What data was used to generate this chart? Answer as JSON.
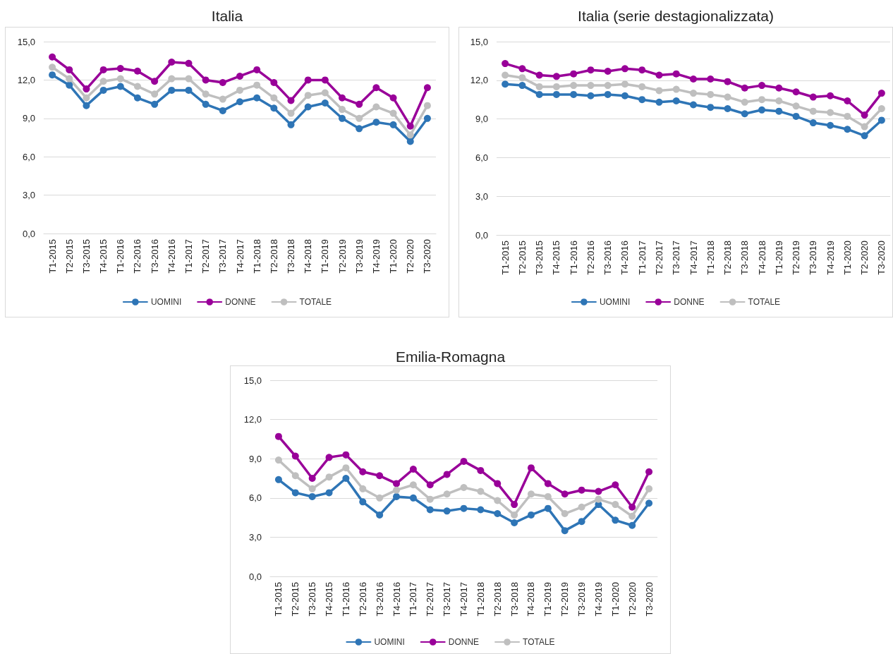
{
  "chart_data": [
    {
      "type": "line",
      "title": "Italia",
      "categories": [
        "T1-2015",
        "T2-2015",
        "T3-2015",
        "T4-2015",
        "T1-2016",
        "T2-2016",
        "T3-2016",
        "T4-2016",
        "T1-2017",
        "T2-2017",
        "T3-2017",
        "T4-2017",
        "T1-2018",
        "T2-2018",
        "T3-2018",
        "T4-2018",
        "T1-2019",
        "T2-2019",
        "T3-2019",
        "T4-2019",
        "T1-2020",
        "T2-2020",
        "T3-2020"
      ],
      "series": [
        {
          "name": "UOMINI",
          "color": "#2e75b6",
          "values": [
            12.4,
            11.6,
            10.0,
            11.2,
            11.5,
            10.6,
            10.1,
            11.2,
            11.2,
            10.1,
            9.6,
            10.3,
            10.6,
            9.8,
            8.5,
            9.9,
            10.2,
            9.0,
            8.2,
            8.7,
            8.5,
            7.2,
            9.0
          ]
        },
        {
          "name": "DONNE",
          "color": "#990099",
          "values": [
            13.8,
            12.8,
            11.3,
            12.8,
            12.9,
            12.7,
            11.9,
            13.4,
            13.3,
            12.0,
            11.8,
            12.3,
            12.8,
            11.8,
            10.4,
            12.0,
            12.0,
            10.6,
            10.1,
            11.4,
            10.6,
            8.4,
            11.4
          ]
        },
        {
          "name": "TOTALE",
          "color": "#bfbfbf",
          "values": [
            13.0,
            12.1,
            10.6,
            11.9,
            12.1,
            11.5,
            10.9,
            12.1,
            12.1,
            10.9,
            10.5,
            11.2,
            11.6,
            10.6,
            9.4,
            10.8,
            11.0,
            9.7,
            9.0,
            9.9,
            9.4,
            7.7,
            10.0
          ]
        }
      ],
      "ylim": [
        0,
        15
      ],
      "yticks": [
        {
          "value": 0,
          "label": "0,0"
        },
        {
          "value": 3,
          "label": "3,0"
        },
        {
          "value": 6,
          "label": "6,0"
        },
        {
          "value": 9,
          "label": "9,0"
        },
        {
          "value": 12,
          "label": "12,0"
        },
        {
          "value": 15,
          "label": "15,0"
        }
      ],
      "grid": "y",
      "legend": "bottom",
      "marker": "circle",
      "line_style": "solid"
    },
    {
      "type": "line",
      "title": "Italia (serie destagionalizzata)",
      "categories": [
        "T1-2015",
        "T2-2015",
        "T3-2015",
        "T4-2015",
        "T1-2016",
        "T2-2016",
        "T3-2016",
        "T4-2016",
        "T1-2017",
        "T2-2017",
        "T3-2017",
        "T4-2017",
        "T1-2018",
        "T2-2018",
        "T3-2018",
        "T4-2018",
        "T1-2019",
        "T2-2019",
        "T3-2019",
        "T4-2019",
        "T1-2020",
        "T2-2020",
        "T3-2020"
      ],
      "series": [
        {
          "name": "UOMINI",
          "color": "#2e75b6",
          "values": [
            11.7,
            11.6,
            10.9,
            10.9,
            10.9,
            10.8,
            10.9,
            10.8,
            10.5,
            10.3,
            10.4,
            10.1,
            9.9,
            9.8,
            9.4,
            9.7,
            9.6,
            9.2,
            8.7,
            8.5,
            8.2,
            7.7,
            8.9
          ]
        },
        {
          "name": "DONNE",
          "color": "#990099",
          "values": [
            13.3,
            12.9,
            12.4,
            12.3,
            12.5,
            12.8,
            12.7,
            12.9,
            12.8,
            12.4,
            12.5,
            12.1,
            12.1,
            11.9,
            11.4,
            11.6,
            11.4,
            11.1,
            10.7,
            10.8,
            10.4,
            9.3,
            11.0
          ]
        },
        {
          "name": "TOTALE",
          "color": "#bfbfbf",
          "values": [
            12.4,
            12.2,
            11.5,
            11.5,
            11.6,
            11.6,
            11.6,
            11.7,
            11.5,
            11.2,
            11.3,
            11.0,
            10.9,
            10.7,
            10.3,
            10.5,
            10.4,
            10.0,
            9.6,
            9.5,
            9.2,
            8.4,
            9.8
          ]
        }
      ],
      "ylim": [
        0,
        15
      ],
      "yticks": [
        {
          "value": 0,
          "label": "0,0"
        },
        {
          "value": 3,
          "label": "3,0"
        },
        {
          "value": 6,
          "label": "6,0"
        },
        {
          "value": 9,
          "label": "9,0"
        },
        {
          "value": 12,
          "label": "12,0"
        },
        {
          "value": 15,
          "label": "15,0"
        }
      ],
      "grid": "y",
      "legend": "bottom",
      "marker": "circle",
      "line_style": "solid"
    },
    {
      "type": "line",
      "title": "Emilia-Romagna",
      "categories": [
        "T1-2015",
        "T2-2015",
        "T3-2015",
        "T4-2015",
        "T1-2016",
        "T2-2016",
        "T3-2016",
        "T4-2016",
        "T1-2017",
        "T2-2017",
        "T3-2017",
        "T4-2017",
        "T1-2018",
        "T2-2018",
        "T3-2018",
        "T4-2018",
        "T1-2019",
        "T2-2019",
        "T3-2019",
        "T4-2019",
        "T1-2020",
        "T2-2020",
        "T3-2020"
      ],
      "series": [
        {
          "name": "UOMINI",
          "color": "#2e75b6",
          "values": [
            7.4,
            6.4,
            6.1,
            6.4,
            7.5,
            5.7,
            4.7,
            6.1,
            6.0,
            5.1,
            5.0,
            5.2,
            5.1,
            4.8,
            4.1,
            4.7,
            5.2,
            3.5,
            4.2,
            5.5,
            4.3,
            3.9,
            5.6
          ]
        },
        {
          "name": "DONNE",
          "color": "#990099",
          "values": [
            10.7,
            9.2,
            7.5,
            9.1,
            9.3,
            8.0,
            7.7,
            7.1,
            8.2,
            7.0,
            7.8,
            8.8,
            8.1,
            7.1,
            5.5,
            8.3,
            7.1,
            6.3,
            6.6,
            6.5,
            7.0,
            5.3,
            8.0
          ]
        },
        {
          "name": "TOTALE",
          "color": "#bfbfbf",
          "values": [
            8.9,
            7.7,
            6.7,
            7.6,
            8.3,
            6.7,
            6.0,
            6.6,
            7.0,
            5.9,
            6.3,
            6.8,
            6.5,
            5.8,
            4.7,
            6.3,
            6.1,
            4.8,
            5.3,
            5.9,
            5.5,
            4.6,
            6.7
          ]
        }
      ],
      "ylim": [
        0,
        15
      ],
      "yticks": [
        {
          "value": 0,
          "label": "0,0"
        },
        {
          "value": 3,
          "label": "3,0"
        },
        {
          "value": 6,
          "label": "6,0"
        },
        {
          "value": 9,
          "label": "9,0"
        },
        {
          "value": 12,
          "label": "12,0"
        },
        {
          "value": 15,
          "label": "15,0"
        }
      ],
      "grid": "y",
      "legend": "bottom",
      "marker": "circle",
      "line_style": "solid"
    }
  ]
}
